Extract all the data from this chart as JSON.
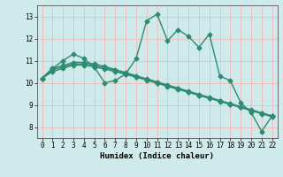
{
  "x": [
    0,
    1,
    2,
    3,
    4,
    5,
    6,
    7,
    8,
    9,
    10,
    11,
    12,
    13,
    14,
    15,
    16,
    17,
    18,
    19,
    20,
    21,
    22
  ],
  "y_main": [
    10.2,
    10.65,
    11.0,
    11.3,
    11.1,
    10.7,
    10.0,
    10.1,
    10.4,
    11.1,
    12.8,
    13.1,
    11.9,
    12.4,
    12.1,
    11.6,
    12.2,
    10.3,
    10.1,
    9.1,
    8.65,
    7.8,
    8.5
  ],
  "y_line1": [
    10.2,
    10.5,
    10.65,
    10.8,
    10.8,
    10.72,
    10.62,
    10.5,
    10.38,
    10.25,
    10.12,
    9.98,
    9.84,
    9.7,
    9.57,
    9.43,
    9.3,
    9.17,
    9.03,
    8.9,
    8.76,
    8.63,
    8.5
  ],
  "y_line2": [
    10.2,
    10.58,
    10.72,
    10.85,
    10.85,
    10.78,
    10.68,
    10.55,
    10.42,
    10.28,
    10.14,
    10.0,
    9.86,
    9.72,
    9.58,
    9.44,
    9.3,
    9.16,
    9.02,
    8.88,
    8.74,
    8.6,
    8.46
  ],
  "y_line3": [
    10.2,
    10.65,
    10.78,
    10.92,
    10.92,
    10.85,
    10.74,
    10.6,
    10.46,
    10.32,
    10.18,
    10.04,
    9.9,
    9.76,
    9.62,
    9.48,
    9.34,
    9.2,
    9.06,
    8.92,
    8.78,
    8.64,
    8.5
  ],
  "color": "#2e8b72",
  "bg_color": "#ceeaea",
  "grid_color": "#f0b8b8",
  "xlabel": "Humidex (Indice chaleur)",
  "ylim": [
    7.5,
    13.5
  ],
  "xlim": [
    -0.5,
    22.5
  ],
  "yticks": [
    8,
    9,
    10,
    11,
    12,
    13
  ],
  "xticks": [
    0,
    1,
    2,
    3,
    4,
    5,
    6,
    7,
    8,
    9,
    10,
    11,
    12,
    13,
    14,
    15,
    16,
    17,
    18,
    19,
    20,
    21,
    22
  ],
  "marker": "D",
  "markersize": 2.5,
  "linewidth": 1.0,
  "xlabel_fontsize": 6.5,
  "tick_fontsize": 5.5
}
